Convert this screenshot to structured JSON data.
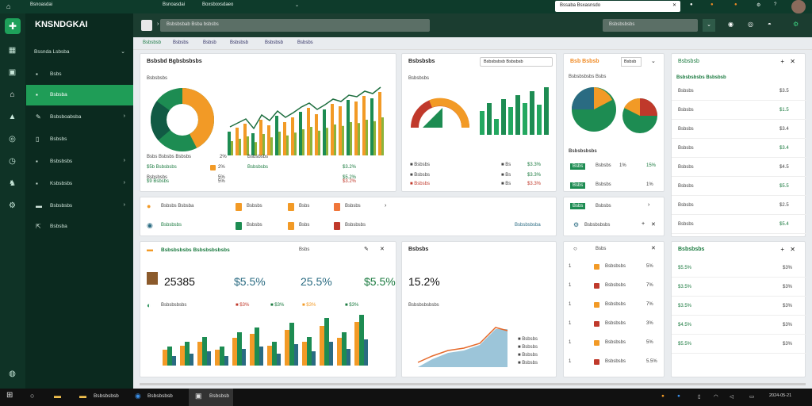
{
  "topbar": {
    "app": "Bsnoasdai",
    "field": "Boxsboxsdaeo",
    "search": "Bssaba Bsxasnsdo"
  },
  "sidebar": {
    "logo": "KNSNDGKAI",
    "items": [
      {
        "label": "Bssnda Lsbsba",
        "icon": "grid-icon"
      },
      {
        "label": "Bsbs",
        "icon": "box-icon"
      },
      {
        "label": "Bsbsba",
        "icon": "home-icon",
        "active": true
      },
      {
        "label": "Bsbsboabsba",
        "icon": "chart-icon"
      },
      {
        "label": "Bsbsbs",
        "icon": "doc-icon"
      },
      {
        "label": "Bsbsbsbs",
        "icon": "file-icon"
      },
      {
        "label": "Ksbsbsbs",
        "icon": "list-icon"
      },
      {
        "label": "Bsbsbsbs",
        "icon": "user-icon"
      },
      {
        "label": "Bsbsba",
        "icon": "arrow-icon"
      }
    ]
  },
  "toolbar": {
    "select": "Bsbsbsbab Bsba bsbsbs",
    "select2": "Bsbsbsbsbs"
  },
  "tabs": [
    "Bsbsbsb",
    "Bsbsbs",
    "Bsbsb",
    "Bsbsbsb",
    "Bsbsbsb",
    "Bsbsbs"
  ],
  "card1": {
    "title": "Bsbsbd Bgbsbsbsbs",
    "sub": "Bsbsbsbs",
    "legend": [
      {
        "label": "Bsbs Bsbsbs Bsbsbs",
        "v": "2%"
      },
      {
        "label": "Bsbsbsbs",
        "v": "Bsbs"
      }
    ],
    "rows": [
      [
        "$5b Bsbsbsbs",
        "2%",
        "$3.2%"
      ],
      [
        "Bsbsbsbs",
        "5%",
        "$5.2%"
      ],
      [
        "$9 Bsbsbs",
        "5%",
        "$3.2%"
      ]
    ]
  },
  "card2": {
    "title": "Bsbsbsbs",
    "select": "Bsbsbsbsb Bsbsbsb",
    "sub": "Bsbsbsbs"
  },
  "card3": {
    "title": "Bsb Bsbsb",
    "btn": "Bsbsb",
    "sub": "Bsbsbsbsbs Bsbs",
    "sub2": "Bsbsbsbsbs"
  },
  "card4": {
    "title": "Bsbsbsbsbs Bsbsbsb",
    "rows": [
      "Bsbsbs",
      "Bsbsbs",
      "Bsbsbs",
      "Bsbsbs",
      "Bsbsbs",
      "Bsbsbs",
      "Bsbsbs",
      "Bsbsbs"
    ],
    "vals": [
      "$3.5",
      "$1.5",
      "$3.4",
      "$3.4",
      "$4.5",
      "$5.5",
      "$2.5",
      "$5.4"
    ]
  },
  "mid": {
    "labels": [
      "Bsbsbs Bsbsba",
      "Bsbsbs",
      "Bsbs",
      "Bsbsbs",
      "Bsbsbsbs",
      "Bsbsbs",
      "Bsbs",
      "Bsbsbsbs",
      "Bsbsbsbsba"
    ]
  },
  "stats": {
    "title": "Bsbsbsbsbs Bsbsbsbsbsbs",
    "vals": [
      "25385",
      "$5.5%",
      "25.5%",
      "$5.5%"
    ],
    "sub": "Bsbsbsbsbs"
  },
  "stat2": {
    "title": "Bsbsbs",
    "val": "15.2%",
    "sub": "Bsbsbsbsbsbs"
  },
  "list": {
    "rows": [
      "Bsbsbsbs",
      "Bsbsbsbs",
      "Bsbsbsbs",
      "Bsbsbsbs",
      "Bsbsbsbs",
      "Bsbsbsbs"
    ],
    "vals": [
      "5%",
      "7%",
      "7%",
      "3%",
      "5%",
      "5.5%"
    ]
  },
  "card5": {
    "title": "Bsbsbsbs",
    "rows": [
      "$5.5%",
      "$3.5%",
      "$3.5%",
      "$4.5%",
      "$5.5%"
    ],
    "vals": [
      "$3%",
      "$3%",
      "$3%",
      "$3%",
      "$3%"
    ]
  },
  "taskbar": {
    "a": "Bsbsbsbsb",
    "b": "Bsbsbsbsb",
    "c": "Bsbsbsb",
    "time": "2024-05-21"
  }
}
